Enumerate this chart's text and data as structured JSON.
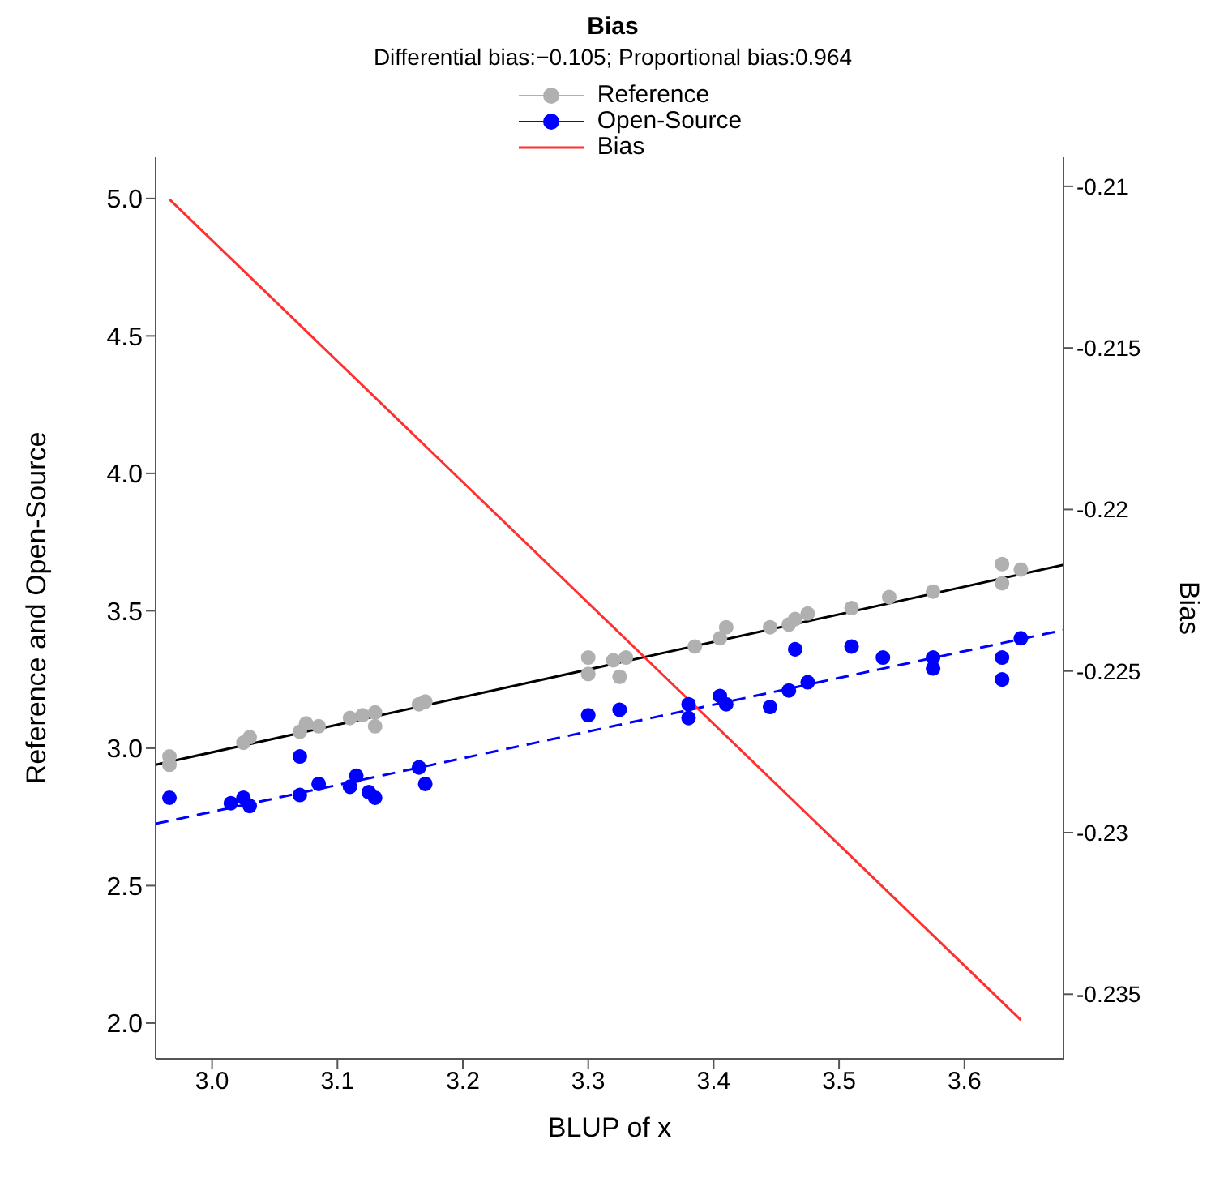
{
  "chart_data": {
    "type": "scatter",
    "title": "Bias",
    "subtitle": "Differential bias:−0.105; Proportional bias:0.964",
    "xlabel": "BLUP of x",
    "ylabel": "Reference and Open-Source",
    "y2label": "Bias",
    "xlim": [
      2.955,
      3.679
    ],
    "xticks": [
      {
        "value": 3.0,
        "label": "3.0"
      },
      {
        "value": 3.1,
        "label": "3.1"
      },
      {
        "value": 3.2,
        "label": "3.2"
      },
      {
        "value": 3.3,
        "label": "3.3"
      },
      {
        "value": 3.4,
        "label": "3.4"
      },
      {
        "value": 3.5,
        "label": "3.5"
      },
      {
        "value": 3.6,
        "label": "3.6"
      }
    ],
    "ylim": [
      1.87,
      5.15
    ],
    "yticks": [
      {
        "value": 2.0,
        "label": "2.0"
      },
      2.5,
      {
        "value": 3.0,
        "label": "3.0"
      },
      3.5,
      {
        "value": 4.0,
        "label": "4.0"
      },
      4.5,
      {
        "value": 5.0,
        "label": "5.0"
      }
    ],
    "y2lim": [
      -0.237,
      -0.2091
    ],
    "y2ticks": [
      -0.235,
      -0.23,
      -0.225,
      -0.22,
      -0.215,
      -0.21
    ],
    "legend": "top",
    "grid": false,
    "series": [
      {
        "name": "Reference",
        "marker": "circle",
        "color": "#b0b0b0",
        "x": [
          2.966,
          2.966,
          3.025,
          3.03,
          3.07,
          3.075,
          3.085,
          3.11,
          3.12,
          3.13,
          3.13,
          3.165,
          3.17,
          3.3,
          3.3,
          3.32,
          3.325,
          3.33,
          3.385,
          3.405,
          3.41,
          3.445,
          3.46,
          3.465,
          3.475,
          3.51,
          3.54,
          3.575,
          3.63,
          3.63,
          3.645
        ],
        "values": [
          2.94,
          2.97,
          3.02,
          3.04,
          3.06,
          3.09,
          3.08,
          3.11,
          3.12,
          3.13,
          3.08,
          3.16,
          3.17,
          3.33,
          3.27,
          3.32,
          3.26,
          3.33,
          3.37,
          3.4,
          3.44,
          3.44,
          3.45,
          3.47,
          3.49,
          3.51,
          3.55,
          3.57,
          3.6,
          3.67,
          3.65
        ]
      },
      {
        "type": "line",
        "marker": "none",
        "color": "#000000",
        "line_style": "solid",
        "x": [
          2.955,
          3.679
        ],
        "values": [
          2.94,
          3.667
        ]
      },
      {
        "name": "Open-Source",
        "marker": "circle",
        "color": "#0000ff",
        "x": [
          2.966,
          3.015,
          3.025,
          3.03,
          3.07,
          3.07,
          3.085,
          3.11,
          3.115,
          3.125,
          3.13,
          3.165,
          3.17,
          3.3,
          3.325,
          3.38,
          3.38,
          3.405,
          3.41,
          3.445,
          3.46,
          3.465,
          3.475,
          3.51,
          3.535,
          3.575,
          3.575,
          3.63,
          3.63,
          3.645
        ],
        "values": [
          2.82,
          2.8,
          2.82,
          2.79,
          2.83,
          2.97,
          2.87,
          2.86,
          2.9,
          2.84,
          2.82,
          2.93,
          2.87,
          3.12,
          3.14,
          3.11,
          3.16,
          3.19,
          3.16,
          3.15,
          3.21,
          3.36,
          3.24,
          3.37,
          3.33,
          3.29,
          3.33,
          3.25,
          3.33,
          3.4
        ]
      },
      {
        "type": "line",
        "marker": "none",
        "color": "#0000ff",
        "line_style": "dashed",
        "x": [
          2.955,
          3.679
        ],
        "values": [
          2.725,
          3.43
        ]
      },
      {
        "name": "Bias",
        "type": "line",
        "marker": "none",
        "axis": "y2",
        "color": "#ff3030",
        "line_style": "solid",
        "x": [
          2.966,
          3.645
        ],
        "values": [
          -0.2104,
          -0.2358
        ]
      }
    ]
  }
}
